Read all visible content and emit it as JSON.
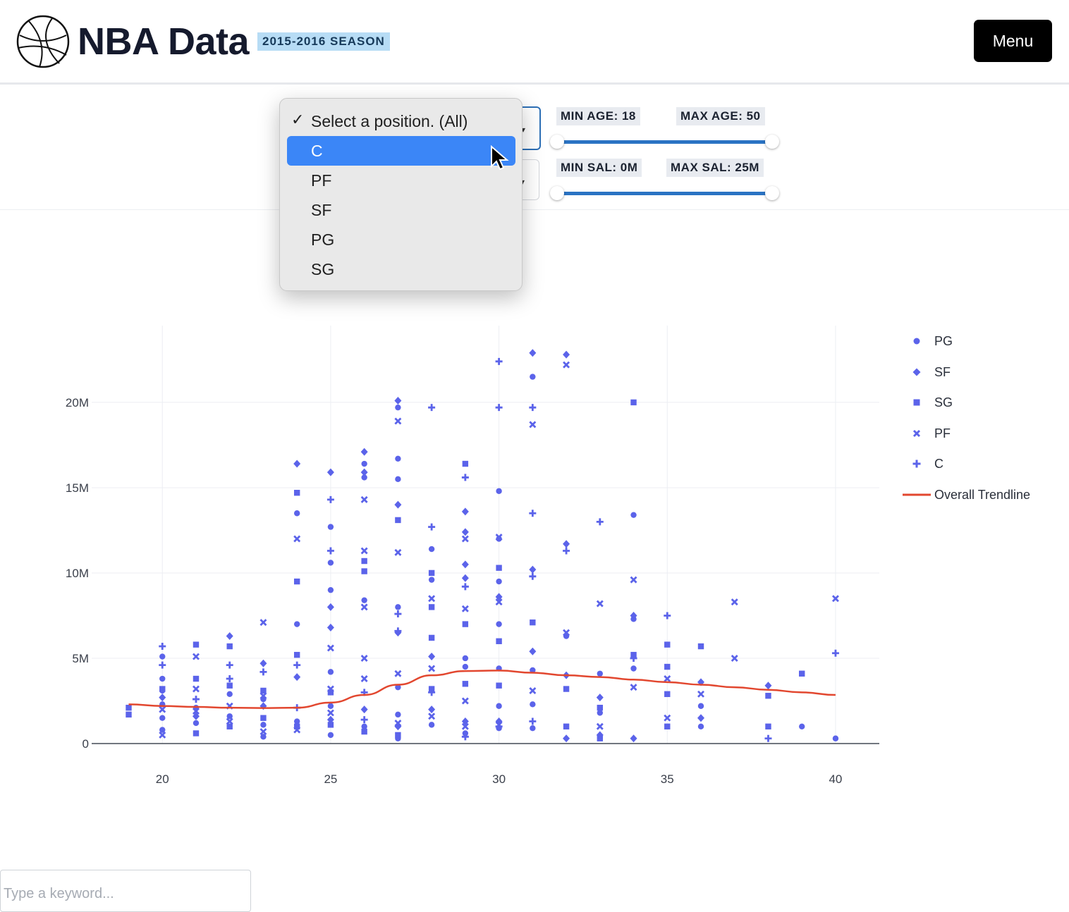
{
  "header": {
    "title": "NBA Data",
    "season_badge": "2015-2016 SEASON",
    "menu_label": "Menu",
    "logo_icon": "basketball-icon"
  },
  "filters": {
    "position_select": {
      "options": [
        "Select a position. (All)",
        "C",
        "PF",
        "SF",
        "PG",
        "SG"
      ],
      "checked_option": "Select a position. (All)",
      "highlighted_option": "C"
    },
    "age_slider": {
      "min_label": "MIN AGE: 18",
      "max_label": "MAX AGE: 50",
      "min": 18,
      "max": 50
    },
    "salary_slider": {
      "min_label": "MIN SAL: 0M",
      "max_label": "MAX SAL: 25M",
      "min": 0,
      "max": 25
    }
  },
  "search": {
    "placeholder": "Type a keyword..."
  },
  "colors": {
    "accent": "#2a73c3",
    "marker": "#5b63ea",
    "trendline": "#e2472f",
    "highlight": "#3b86f7"
  },
  "chart_data": {
    "type": "scatter",
    "xlim": [
      17.9,
      41.3
    ],
    "ylim": [
      0,
      24500000
    ],
    "xticks": [
      20,
      25,
      30,
      35,
      40
    ],
    "yticks": [
      {
        "v": 0,
        "label": "0"
      },
      {
        "v": 5000000,
        "label": "5M"
      },
      {
        "v": 10000000,
        "label": "10M"
      },
      {
        "v": 15000000,
        "label": "15M"
      },
      {
        "v": 20000000,
        "label": "20M"
      }
    ],
    "grid": true,
    "legend_placement": "top-right",
    "series": [
      {
        "name": "PG",
        "symbol": "circle",
        "points": [
          [
            20,
            0.8
          ],
          [
            20,
            1.5
          ],
          [
            20,
            2.3
          ],
          [
            20,
            3.1
          ],
          [
            20,
            3.8
          ],
          [
            20,
            5.1
          ],
          [
            21,
            1.2
          ],
          [
            21,
            2.1
          ],
          [
            22,
            1.6
          ],
          [
            22,
            2.9
          ],
          [
            23,
            0.4
          ],
          [
            23,
            1.1
          ],
          [
            23,
            2.6
          ],
          [
            24,
            1.3
          ],
          [
            24,
            7.0
          ],
          [
            24,
            13.5
          ],
          [
            25,
            0.5
          ],
          [
            25,
            2.2
          ],
          [
            25,
            4.2
          ],
          [
            25,
            9.0
          ],
          [
            25,
            10.6
          ],
          [
            25,
            12.7
          ],
          [
            26,
            1.0
          ],
          [
            26,
            8.4
          ],
          [
            26,
            15.6
          ],
          [
            26,
            16.4
          ],
          [
            27,
            0.3
          ],
          [
            27,
            1.7
          ],
          [
            27,
            3.3
          ],
          [
            27,
            8.0
          ],
          [
            27,
            15.5
          ],
          [
            27,
            16.7
          ],
          [
            27,
            19.7
          ],
          [
            28,
            1.1
          ],
          [
            28,
            9.6
          ],
          [
            28,
            11.4
          ],
          [
            29,
            0.6
          ],
          [
            29,
            4.5
          ],
          [
            29,
            5.0
          ],
          [
            30,
            0.9
          ],
          [
            30,
            2.2
          ],
          [
            30,
            4.4
          ],
          [
            30,
            7.0
          ],
          [
            30,
            9.5
          ],
          [
            30,
            12.0
          ],
          [
            30,
            14.8
          ],
          [
            31,
            0.9
          ],
          [
            31,
            2.3
          ],
          [
            31,
            4.3
          ],
          [
            31,
            21.5
          ],
          [
            32,
            6.3
          ],
          [
            33,
            1.8
          ],
          [
            33,
            4.1
          ],
          [
            34,
            4.4
          ],
          [
            34,
            13.4
          ],
          [
            34,
            7.3
          ],
          [
            36,
            1.0
          ],
          [
            36,
            2.2
          ],
          [
            39,
            1.0
          ],
          [
            40,
            0.3
          ]
        ]
      },
      {
        "name": "SF",
        "symbol": "diamond",
        "points": [
          [
            20,
            2.7
          ],
          [
            21,
            1.6
          ],
          [
            22,
            6.3
          ],
          [
            23,
            2.2
          ],
          [
            23,
            4.7
          ],
          [
            24,
            3.9
          ],
          [
            24,
            16.4
          ],
          [
            25,
            1.4
          ],
          [
            25,
            6.8
          ],
          [
            25,
            8.0
          ],
          [
            25,
            15.9
          ],
          [
            26,
            2.0
          ],
          [
            26,
            15.9
          ],
          [
            26,
            17.1
          ],
          [
            27,
            1.0
          ],
          [
            27,
            6.5
          ],
          [
            27,
            14.0
          ],
          [
            27,
            20.1
          ],
          [
            28,
            2.0
          ],
          [
            28,
            5.1
          ],
          [
            29,
            1.3
          ],
          [
            29,
            9.7
          ],
          [
            29,
            10.5
          ],
          [
            29,
            12.4
          ],
          [
            29,
            13.6
          ],
          [
            30,
            1.3
          ],
          [
            30,
            8.6
          ],
          [
            31,
            5.4
          ],
          [
            31,
            10.2
          ],
          [
            31,
            22.9
          ],
          [
            32,
            0.3
          ],
          [
            32,
            4.0
          ],
          [
            32,
            11.7
          ],
          [
            32,
            22.8
          ],
          [
            33,
            0.5
          ],
          [
            33,
            2.7
          ],
          [
            34,
            0.3
          ],
          [
            34,
            7.5
          ],
          [
            36,
            1.5
          ],
          [
            36,
            3.6
          ],
          [
            38,
            3.4
          ]
        ]
      },
      {
        "name": "SG",
        "symbol": "square",
        "points": [
          [
            19,
            1.7
          ],
          [
            19,
            2.1
          ],
          [
            20,
            3.2
          ],
          [
            21,
            0.6
          ],
          [
            21,
            3.8
          ],
          [
            21,
            5.8
          ],
          [
            22,
            1.0
          ],
          [
            22,
            3.4
          ],
          [
            22,
            5.7
          ],
          [
            23,
            1.5
          ],
          [
            23,
            3.1
          ],
          [
            24,
            1.0
          ],
          [
            24,
            5.2
          ],
          [
            24,
            9.5
          ],
          [
            24,
            14.7
          ],
          [
            25,
            1.1
          ],
          [
            25,
            3.0
          ],
          [
            26,
            0.7
          ],
          [
            26,
            10.1
          ],
          [
            26,
            10.7
          ],
          [
            27,
            0.5
          ],
          [
            27,
            13.1
          ],
          [
            28,
            3.2
          ],
          [
            28,
            6.2
          ],
          [
            28,
            8.0
          ],
          [
            28,
            10.0
          ],
          [
            29,
            3.5
          ],
          [
            29,
            7.0
          ],
          [
            29,
            16.4
          ],
          [
            30,
            3.4
          ],
          [
            30,
            6.0
          ],
          [
            30,
            10.3
          ],
          [
            31,
            7.1
          ],
          [
            32,
            1.0
          ],
          [
            32,
            3.2
          ],
          [
            33,
            0.3
          ],
          [
            33,
            2.1
          ],
          [
            34,
            5.2
          ],
          [
            34,
            20.0
          ],
          [
            35,
            1.0
          ],
          [
            35,
            2.9
          ],
          [
            35,
            4.5
          ],
          [
            35,
            5.8
          ],
          [
            36,
            5.7
          ],
          [
            38,
            1.0
          ],
          [
            38,
            2.8
          ],
          [
            39,
            4.1
          ]
        ]
      },
      {
        "name": "PF",
        "symbol": "x",
        "points": [
          [
            20,
            0.5
          ],
          [
            20,
            2.0
          ],
          [
            21,
            1.9
          ],
          [
            21,
            3.2
          ],
          [
            21,
            5.1
          ],
          [
            22,
            1.3
          ],
          [
            22,
            2.2
          ],
          [
            23,
            0.7
          ],
          [
            23,
            2.8
          ],
          [
            23,
            7.1
          ],
          [
            24,
            0.8
          ],
          [
            24,
            12.0
          ],
          [
            25,
            1.8
          ],
          [
            25,
            3.2
          ],
          [
            25,
            5.6
          ],
          [
            26,
            3.8
          ],
          [
            26,
            5.0
          ],
          [
            26,
            8.0
          ],
          [
            26,
            11.3
          ],
          [
            26,
            14.3
          ],
          [
            27,
            1.2
          ],
          [
            27,
            4.1
          ],
          [
            27,
            11.2
          ],
          [
            27,
            18.9
          ],
          [
            28,
            1.6
          ],
          [
            28,
            4.4
          ],
          [
            28,
            8.5
          ],
          [
            29,
            1.0
          ],
          [
            29,
            2.5
          ],
          [
            29,
            7.9
          ],
          [
            29,
            12.0
          ],
          [
            30,
            1.1
          ],
          [
            30,
            8.3
          ],
          [
            30,
            12.1
          ],
          [
            31,
            3.1
          ],
          [
            31,
            18.7
          ],
          [
            32,
            6.5
          ],
          [
            32,
            22.2
          ],
          [
            33,
            1.0
          ],
          [
            33,
            8.2
          ],
          [
            34,
            3.3
          ],
          [
            34,
            9.6
          ],
          [
            35,
            1.5
          ],
          [
            35,
            3.8
          ],
          [
            36,
            2.9
          ],
          [
            37,
            5.0
          ],
          [
            37,
            8.3
          ],
          [
            40,
            8.5
          ]
        ]
      },
      {
        "name": "C",
        "symbol": "cross",
        "points": [
          [
            20,
            4.6
          ],
          [
            20,
            5.7
          ],
          [
            21,
            2.6
          ],
          [
            22,
            3.8
          ],
          [
            22,
            4.6
          ],
          [
            23,
            4.2
          ],
          [
            24,
            2.1
          ],
          [
            24,
            4.6
          ],
          [
            25,
            11.3
          ],
          [
            25,
            14.3
          ],
          [
            26,
            1.4
          ],
          [
            26,
            3.0
          ],
          [
            27,
            6.6
          ],
          [
            27,
            7.6
          ],
          [
            28,
            3.0
          ],
          [
            28,
            12.7
          ],
          [
            28,
            19.7
          ],
          [
            29,
            0.4
          ],
          [
            29,
            9.2
          ],
          [
            29,
            15.6
          ],
          [
            30,
            1.0
          ],
          [
            30,
            19.7
          ],
          [
            30,
            22.4
          ],
          [
            31,
            1.3
          ],
          [
            31,
            9.8
          ],
          [
            31,
            13.5
          ],
          [
            31,
            19.7
          ],
          [
            32,
            11.3
          ],
          [
            33,
            13.0
          ],
          [
            34,
            5.0
          ],
          [
            35,
            7.5
          ],
          [
            38,
            0.3
          ],
          [
            40,
            5.3
          ]
        ]
      }
    ],
    "trendline": {
      "name": "Overall Trendline",
      "points": [
        [
          19,
          2.3
        ],
        [
          20,
          2.2
        ],
        [
          21,
          2.15
        ],
        [
          22,
          2.1
        ],
        [
          23,
          2.08
        ],
        [
          24,
          2.1
        ],
        [
          25,
          2.4
        ],
        [
          26,
          2.85
        ],
        [
          27,
          3.45
        ],
        [
          28,
          4.0
        ],
        [
          29,
          4.25
        ],
        [
          30,
          4.28
        ],
        [
          31,
          4.15
        ],
        [
          32,
          4.0
        ],
        [
          33,
          3.9
        ],
        [
          34,
          3.75
        ],
        [
          35,
          3.6
        ],
        [
          36,
          3.45
        ],
        [
          37,
          3.3
        ],
        [
          38,
          3.15
        ],
        [
          39,
          3.0
        ],
        [
          40,
          2.85
        ]
      ]
    }
  }
}
